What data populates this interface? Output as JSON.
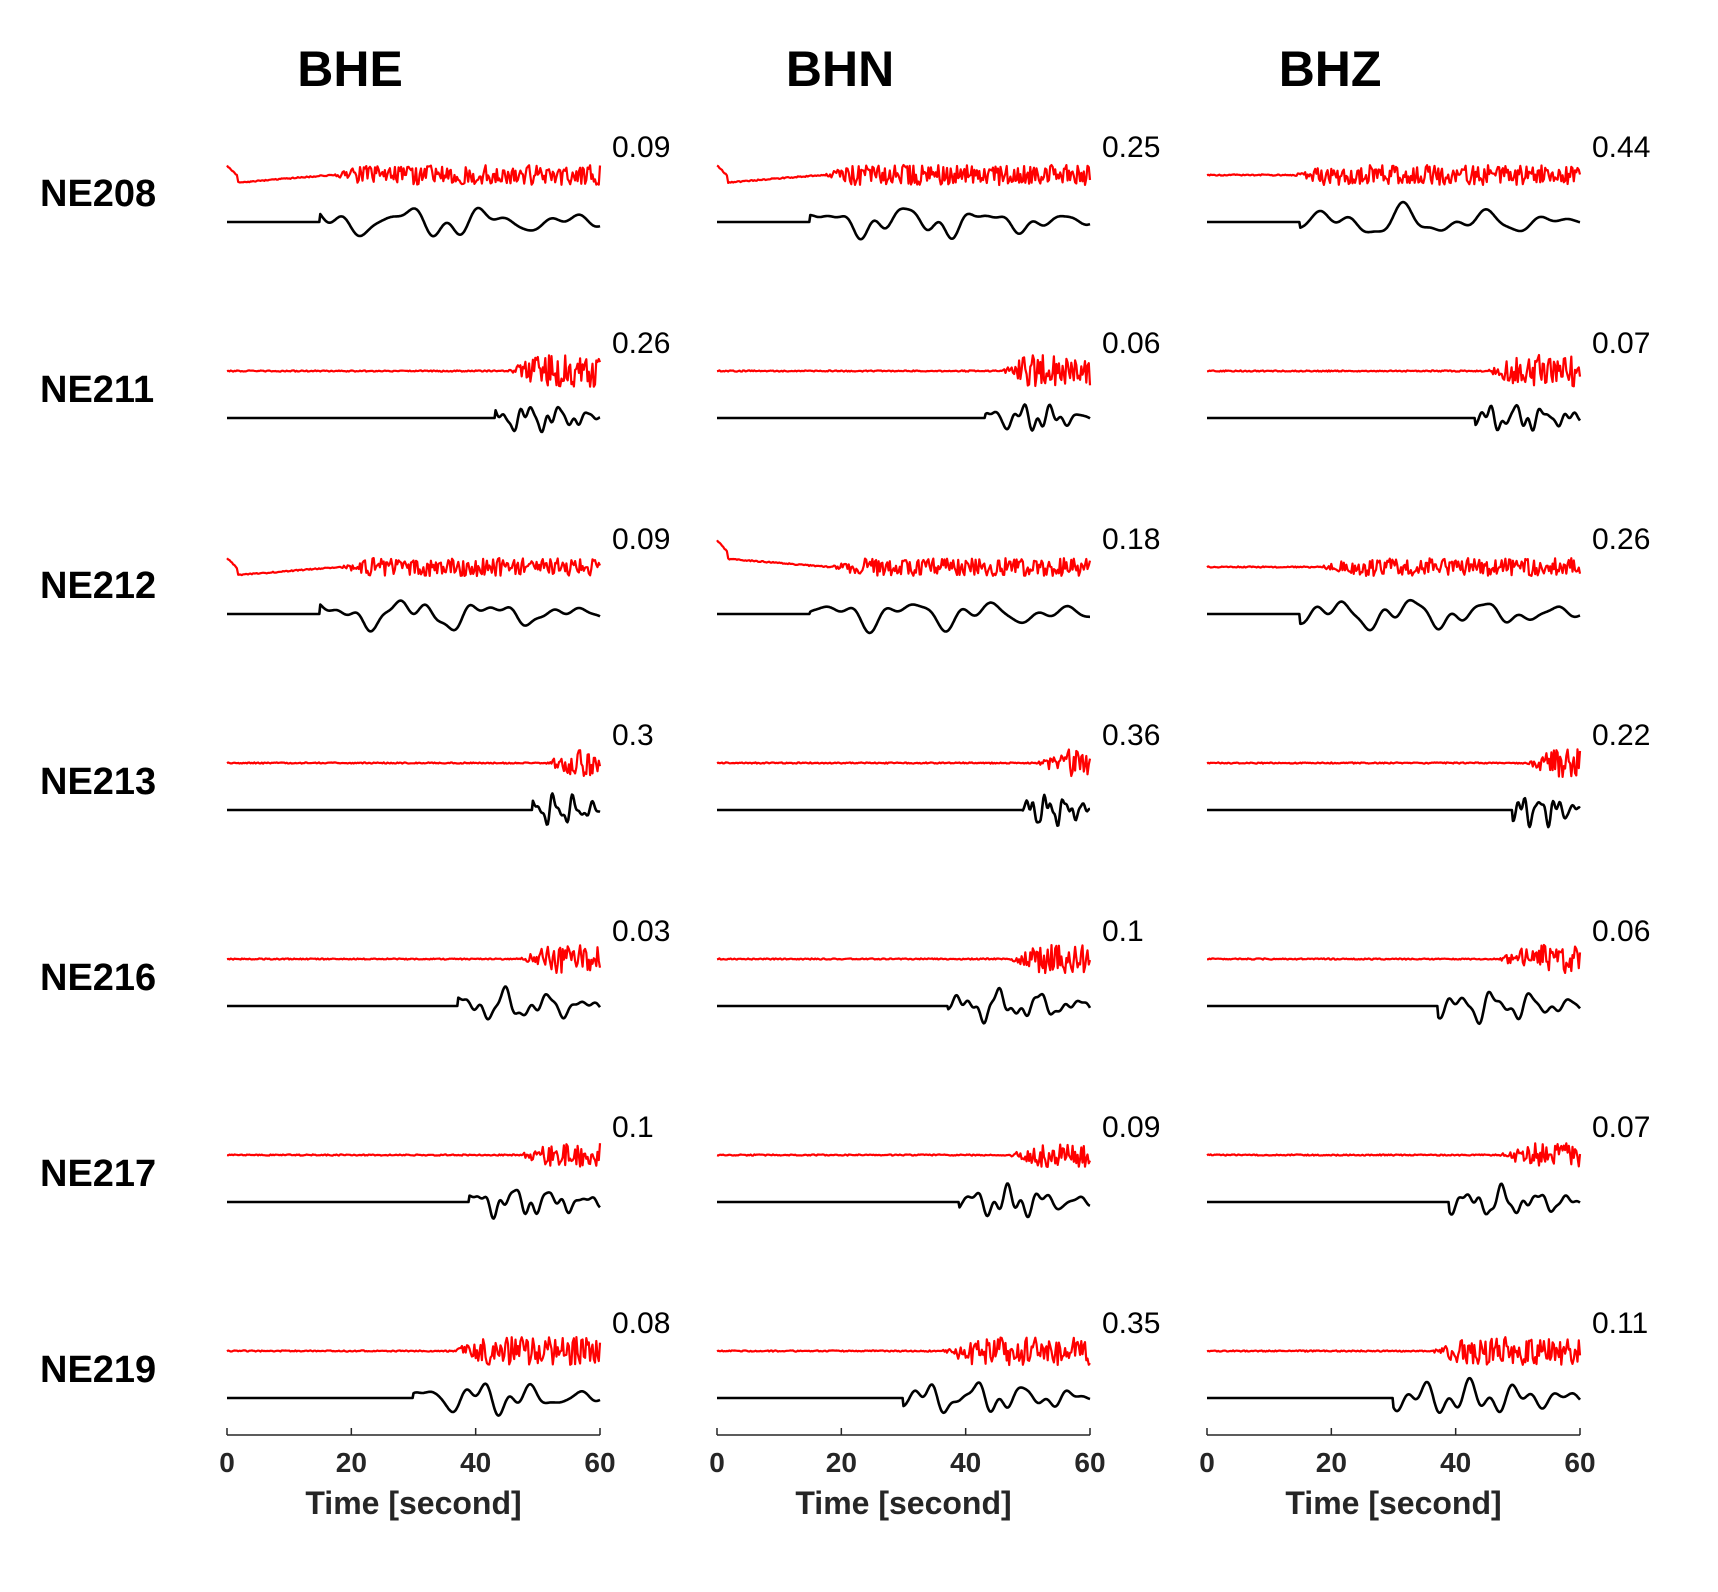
{
  "chart_data": {
    "type": "line",
    "colors": {
      "red_trace": "#ff0000",
      "black_trace": "#000000",
      "axis": "#262626"
    },
    "xlim": [
      0,
      60
    ],
    "xticks": [
      "0",
      "20",
      "40",
      "60"
    ],
    "xlabel": "Time [second]",
    "columns": [
      "BHE",
      "BHN",
      "BHZ"
    ],
    "rows": [
      "NE208",
      "NE211",
      "NE212",
      "NE213",
      "NE216",
      "NE217",
      "NE219"
    ],
    "values": [
      [
        "0.09",
        "0.25",
        "0.44"
      ],
      [
        "0.26",
        "0.06",
        "0.07"
      ],
      [
        "0.09",
        "0.18",
        "0.26"
      ],
      [
        "0.3",
        "0.36",
        "0.22"
      ],
      [
        "0.03",
        "0.1",
        "0.06"
      ],
      [
        "0.1",
        "0.09",
        "0.07"
      ],
      [
        "0.08",
        "0.35",
        "0.11"
      ]
    ]
  }
}
